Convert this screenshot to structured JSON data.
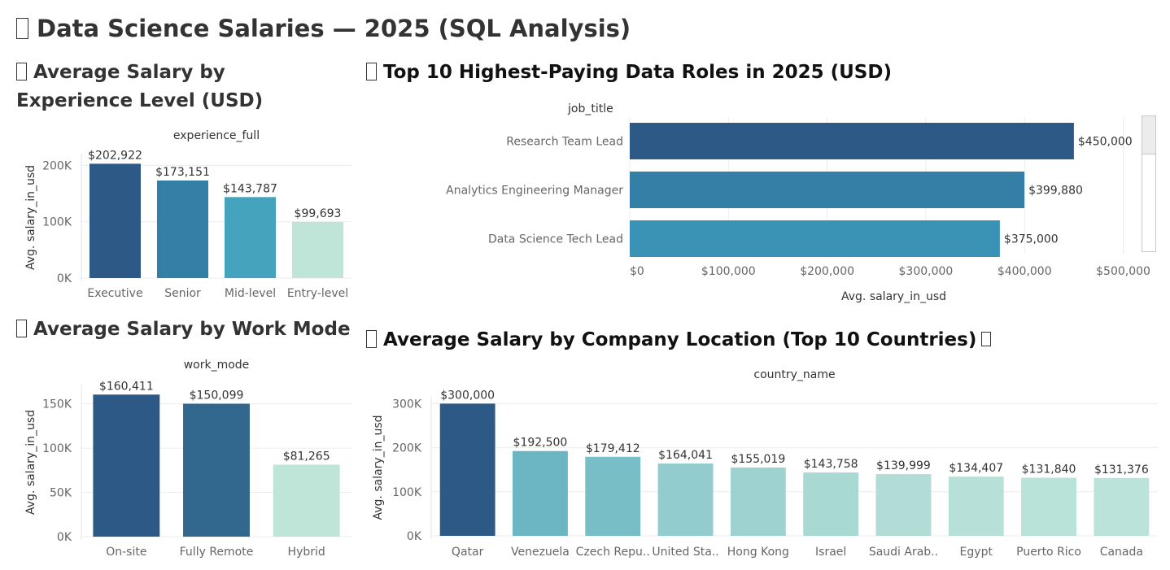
{
  "page": {
    "title": "Data Science Salaries — 2025 (SQL Analysis)"
  },
  "chart_data": [
    {
      "id": "experience",
      "type": "bar",
      "title": "Average Salary by Experience Level (USD)",
      "header": "experience_full",
      "ylabel": "Avg. salary_in_usd",
      "categories": [
        "Executive",
        "Senior",
        "Mid-level",
        "Entry-level"
      ],
      "values": [
        202922,
        173151,
        143787,
        99693
      ],
      "data_labels": [
        "$202,922",
        "$173,151",
        "$143,787",
        "$99,693"
      ],
      "yticks": [
        0,
        100000,
        200000
      ],
      "ytick_labels": [
        "0K",
        "100K",
        "200K"
      ],
      "ylim": [
        0,
        215000
      ],
      "colors": [
        "#2c5985",
        "#347fa5",
        "#45a3bd",
        "#bfe5d9"
      ],
      "grid": true
    },
    {
      "id": "top_roles",
      "type": "bar",
      "orientation": "horizontal",
      "title": "Top 10 Highest-Paying Data Roles in 2025 (USD)",
      "header": "job_title",
      "xlabel": "Avg. salary_in_usd",
      "categories": [
        "Research Team Lead",
        "Analytics Engineering Manager",
        "Data Science Tech Lead"
      ],
      "values": [
        450000,
        399880,
        375000
      ],
      "data_labels": [
        "$450,000",
        "$399,880",
        "$375,000"
      ],
      "xticks": [
        0,
        100000,
        200000,
        300000,
        400000,
        500000
      ],
      "xtick_labels": [
        "$0",
        "$100,000",
        "$200,000",
        "$300,000",
        "$400,000",
        "$500,000"
      ],
      "xlim": [
        0,
        535000
      ],
      "colors": [
        "#2c5985",
        "#347fa5",
        "#3a93b5"
      ],
      "grid": true,
      "scrollable": true
    },
    {
      "id": "work_mode",
      "type": "bar",
      "title": "Average Salary by Work Mode",
      "header": "work_mode",
      "ylabel": "Avg. salary_in_usd",
      "categories": [
        "On-site",
        "Fully Remote",
        "Hybrid"
      ],
      "values": [
        160411,
        150099,
        81265
      ],
      "data_labels": [
        "$160,411",
        "$150,099",
        "$81,265"
      ],
      "yticks": [
        0,
        50000,
        100000,
        150000
      ],
      "ytick_labels": [
        "0K",
        "50K",
        "100K",
        "150K"
      ],
      "ylim": [
        0,
        168000
      ],
      "colors": [
        "#2c5985",
        "#32678e",
        "#bfe5d9"
      ],
      "grid": true
    },
    {
      "id": "country",
      "type": "bar",
      "title": "Average Salary by Company Location (Top 10 Countries)",
      "header": "country_name",
      "ylabel": "Avg. salary_in_usd",
      "categories": [
        "Qatar",
        "Venezuela",
        "Czech Repu..",
        "United Sta..",
        "Hong Kong",
        "Israel",
        "Saudi Arab..",
        "Egypt",
        "Puerto Rico",
        "Canada"
      ],
      "values": [
        300000,
        192500,
        179412,
        164041,
        155019,
        143758,
        139999,
        134407,
        131840,
        131376
      ],
      "data_labels": [
        "$300,000",
        "$192,500",
        "$179,412",
        "$164,041",
        "$155,019",
        "$143,758",
        "$139,999",
        "$134,407",
        "$131,840",
        "$131,376"
      ],
      "yticks": [
        0,
        100000,
        200000,
        300000
      ],
      "ytick_labels": [
        "0K",
        "100K",
        "200K",
        "300K"
      ],
      "ylim": [
        0,
        310000
      ],
      "colors": [
        "#2c5985",
        "#6cb5c2",
        "#78bec7",
        "#92ccce",
        "#9dd2d0",
        "#a9d9d3",
        "#b1ddd6",
        "#b7e1d8",
        "#b9e2d9",
        "#bce3da"
      ],
      "grid": true
    }
  ]
}
